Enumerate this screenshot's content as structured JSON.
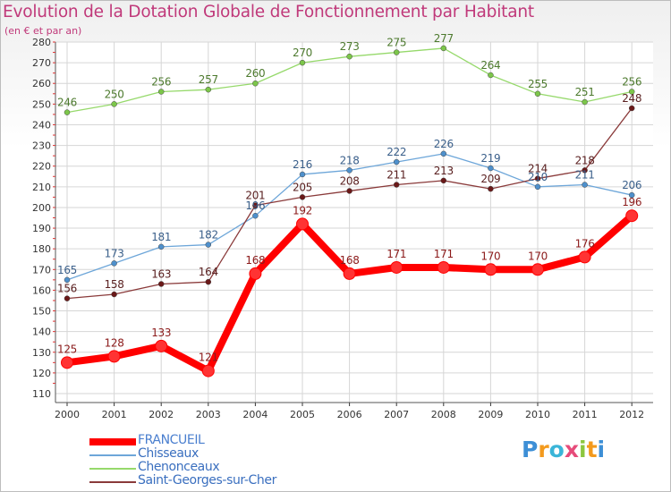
{
  "title": "Evolution de la Dotation Globale de Fonctionnement par Habitant",
  "subtitle": "(en € et par an)",
  "logo": {
    "letters": [
      {
        "char": "P",
        "color": "#3d8fd6"
      },
      {
        "char": "r",
        "color": "#f39a1e"
      },
      {
        "char": "o",
        "color": "#3ab5d8"
      },
      {
        "char": "x",
        "color": "#e64b7a"
      },
      {
        "char": "i",
        "color": "#8cc63e"
      },
      {
        "char": "t",
        "color": "#f39a1e"
      },
      {
        "char": "i",
        "color": "#3d8fd6"
      }
    ]
  },
  "chart_data": {
    "type": "line",
    "x": [
      "2000",
      "2001",
      "2002",
      "2003",
      "2004",
      "2005",
      "2006",
      "2007",
      "2008",
      "2009",
      "2010",
      "2011",
      "2012"
    ],
    "ylim": [
      110,
      280
    ],
    "yticks": [
      "110",
      "120",
      "130",
      "140",
      "150",
      "160",
      "170",
      "180",
      "190",
      "200",
      "210",
      "220",
      "230",
      "240",
      "250",
      "260",
      "270",
      "280"
    ],
    "grid": true,
    "legend_position": "bottom-left",
    "series": [
      {
        "name": "FRANCUEIL",
        "color": "#ff0000",
        "marker_color": "#ff3333",
        "label_color": "#8b1a1a",
        "width": 8,
        "values": [
          125,
          128,
          133,
          121,
          168,
          192,
          168,
          171,
          171,
          170,
          170,
          176,
          196
        ],
        "labels": [
          "125",
          "128",
          "133",
          "121",
          "168",
          "192",
          "168",
          "171",
          "171",
          "170",
          "170",
          "176",
          "196"
        ]
      },
      {
        "name": "Chisseaux",
        "color": "#6da6d9",
        "marker_color": "#4e90cc",
        "label_color": "#3a5f8a",
        "width": 1.3,
        "values": [
          165,
          173,
          181,
          182,
          196,
          216,
          218,
          222,
          226,
          219,
          210,
          211,
          206
        ],
        "labels": [
          "165",
          "173",
          "181",
          "182",
          "196",
          "216",
          "218",
          "222",
          "226",
          "219",
          "210",
          "211",
          "206"
        ]
      },
      {
        "name": "Chenonceaux",
        "color": "#96d96b",
        "marker_color": "#7cc64a",
        "label_color": "#4d7a2e",
        "width": 1.3,
        "values": [
          246,
          250,
          256,
          257,
          260,
          270,
          273,
          275,
          277,
          264,
          255,
          251,
          256
        ],
        "labels": [
          "246",
          "250",
          "256",
          "257",
          "260",
          "270",
          "273",
          "275",
          "277",
          "264",
          "255",
          "251",
          "256"
        ]
      },
      {
        "name": "Saint-Georges-sur-Cher",
        "color": "#8a3a3a",
        "marker_color": "#6a1818",
        "label_color": "#5a2020",
        "width": 1.3,
        "values": [
          156,
          158,
          163,
          164,
          201,
          205,
          208,
          211,
          213,
          209,
          214,
          218,
          248
        ],
        "labels": [
          "156",
          "158",
          "163",
          "164",
          "201",
          "205",
          "208",
          "211",
          "213",
          "209",
          "214",
          "218",
          "248"
        ]
      }
    ]
  }
}
